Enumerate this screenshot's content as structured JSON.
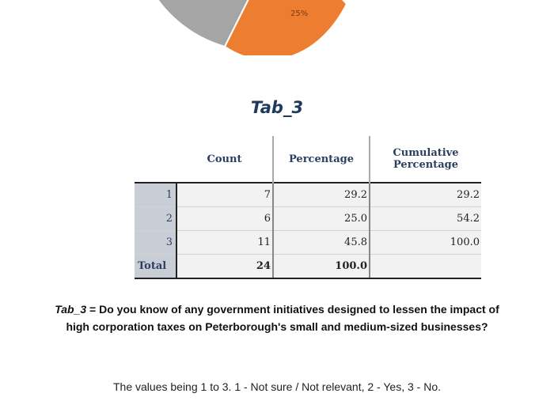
{
  "pie": {
    "visible_slice_label": "25%",
    "colors": {
      "gray": "#a5a5a5",
      "orange": "#ed7d31"
    }
  },
  "table_title": "Tab_3",
  "table": {
    "headers": [
      "Count",
      "Percentage",
      "Cumulative Percentage"
    ],
    "rows": [
      {
        "label": "1",
        "count": "7",
        "percentage": "29.2",
        "cumulative": "29.2"
      },
      {
        "label": "2",
        "count": "6",
        "percentage": "25.0",
        "cumulative": "54.2"
      },
      {
        "label": "3",
        "count": "11",
        "percentage": "45.8",
        "cumulative": "100.0"
      }
    ],
    "total": {
      "label": "Total",
      "count": "24",
      "percentage": "100.0",
      "cumulative": ""
    }
  },
  "caption": {
    "tab_ref": "Tab_3",
    "text": " = Do you know of any government initiatives designed to lessen the impact of high corporation taxes on Peterborough's small and medium-sized businesses?"
  },
  "values_note": "The values being 1 to 3. 1 - Not sure / Not relevant, 2 - Yes, 3 - No."
}
